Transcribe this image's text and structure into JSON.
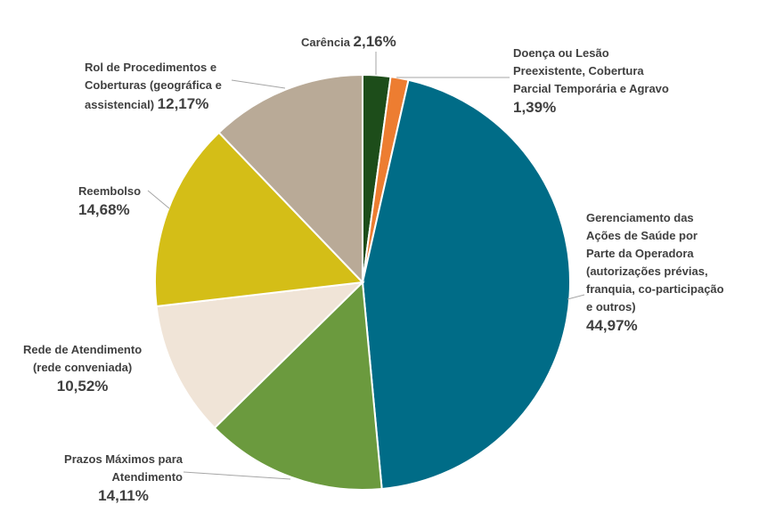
{
  "chart_data": {
    "type": "pie",
    "start_angle": "12 o'clock",
    "direction": "clockwise",
    "categories": [
      "Carência",
      "Doença ou Lesão\nPreexistente, Cobertura\nParcial Temporária e Agravo",
      "Gerenciamento das\nAções de Saúde por\nParte da Operadora\n(autorizações prévias,\nfranquia, co-participação\ne outros)",
      "Prazos Máximos para\nAtendimento",
      "Rede de Atendimento\n(rede conveniada)",
      "Reembolso",
      "Rol de Procedimentos e\nCoberturas (geográfica e\nassistencial)"
    ],
    "values": [
      2.16,
      1.39,
      44.97,
      14.11,
      10.52,
      14.68,
      12.17
    ],
    "value_labels": [
      "2,16%",
      "1,39%",
      "44,97%",
      "14,11%",
      "10,52%",
      "14,68%",
      "12,17%"
    ],
    "colors": [
      "#1d4d1a",
      "#ed7d31",
      "#006c87",
      "#6b9a3e",
      "#f0e4d7",
      "#d4be17",
      "#b9aa97"
    ],
    "legend": "none (data labels with leader lines)"
  }
}
